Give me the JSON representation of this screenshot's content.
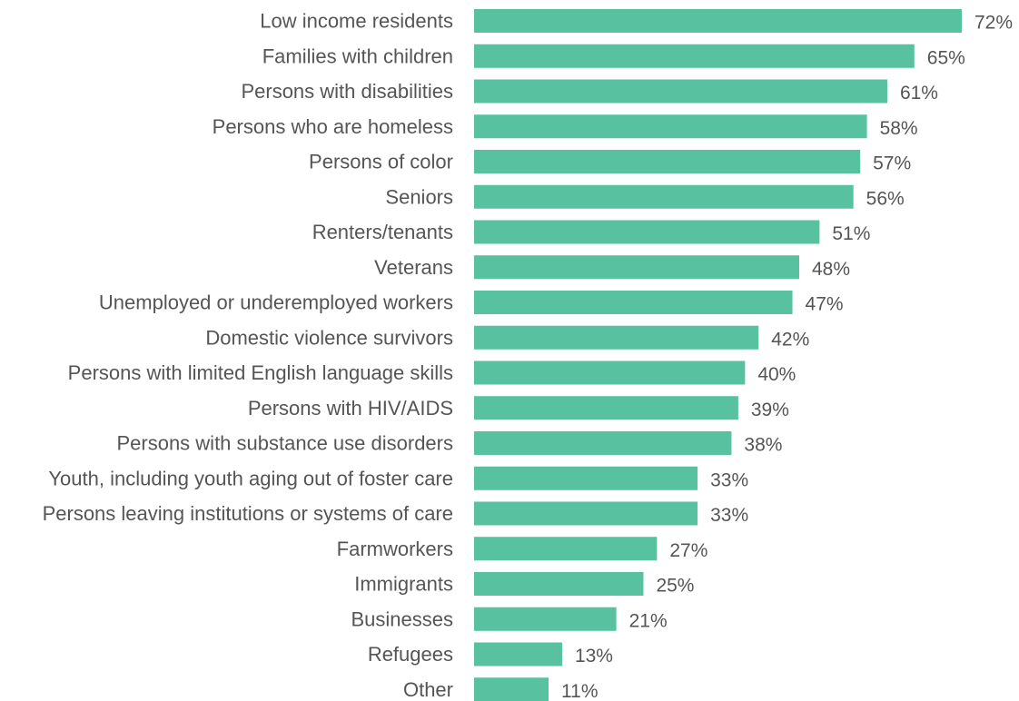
{
  "chart_data": {
    "type": "bar",
    "orientation": "horizontal",
    "categories": [
      "Low income residents",
      "Families with children",
      "Persons with disabilities",
      "Persons who are homeless",
      "Persons of color",
      "Seniors",
      "Renters/tenants",
      "Veterans",
      "Unemployed or underemployed workers",
      "Domestic violence survivors",
      "Persons with limited English language skills",
      "Persons with HIV/AIDS",
      "Persons with substance use disorders",
      "Youth, including youth aging out of foster care",
      "Persons leaving institutions or systems of care",
      "Farmworkers",
      "Immigrants",
      "Businesses",
      "Refugees",
      "Other"
    ],
    "values": [
      72,
      65,
      61,
      58,
      57,
      56,
      51,
      48,
      47,
      42,
      40,
      39,
      38,
      33,
      33,
      27,
      25,
      21,
      13,
      11
    ],
    "value_labels": [
      "72%",
      "65%",
      "61%",
      "58%",
      "57%",
      "56%",
      "51%",
      "48%",
      "47%",
      "42%",
      "40%",
      "39%",
      "38%",
      "33%",
      "33%",
      "27%",
      "25%",
      "21%",
      "13%",
      "11%"
    ],
    "unit": "%",
    "xlim": [
      0,
      72
    ],
    "grid": false,
    "legend": "none",
    "bar_color": "#57c1a0",
    "text_color": "#555555"
  }
}
